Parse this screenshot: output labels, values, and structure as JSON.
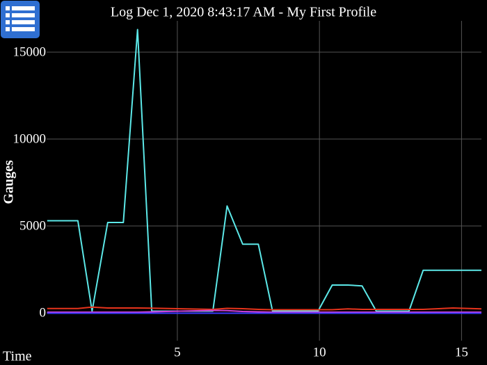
{
  "chart_data": {
    "type": "line",
    "title": "Log Dec 1, 2020 8:43:17 AM - My First Profile",
    "x_label": "Time",
    "y_label": "Gauges",
    "x": [
      0.42,
      1.5,
      2.0,
      2.55,
      3.1,
      3.6,
      4.1,
      6.25,
      6.75,
      7.3,
      7.85,
      8.35,
      9.95,
      10.45,
      11.0,
      11.5,
      12.0,
      13.15,
      13.65,
      14.7,
      15.7
    ],
    "series": [
      {
        "color": "#5ce8e8",
        "values": [
          5300,
          5300,
          100,
          5200,
          5200,
          16300,
          100,
          100,
          6150,
          3950,
          3950,
          100,
          100,
          1600,
          1600,
          1550,
          100,
          100,
          2450,
          2450,
          2450
        ]
      },
      {
        "color": "#e8341c",
        "values": [
          250,
          250,
          330,
          280,
          280,
          280,
          270,
          200,
          260,
          240,
          200,
          180,
          180,
          180,
          230,
          200,
          200,
          200,
          200,
          280,
          230
        ]
      },
      {
        "color": "#d040d8",
        "values": [
          40,
          40,
          40,
          40,
          40,
          40,
          60,
          140,
          130,
          80,
          60,
          40,
          40,
          40,
          40,
          40,
          40,
          40,
          40,
          40,
          40
        ]
      },
      {
        "color": "#3a3aff",
        "values": [
          -20,
          -20,
          -20,
          -20,
          -20,
          -20,
          -20,
          -20,
          -20,
          -20,
          -20,
          -20,
          -20,
          -20,
          -20,
          -20,
          -20,
          -20,
          -20,
          -20,
          -20
        ]
      }
    ],
    "xlim": [
      0.4,
      15.7
    ],
    "ylim": [
      -1600,
      16800
    ],
    "xticks": [
      5,
      10,
      15
    ],
    "yticks": [
      0,
      5000,
      10000,
      15000
    ],
    "grid": true
  }
}
